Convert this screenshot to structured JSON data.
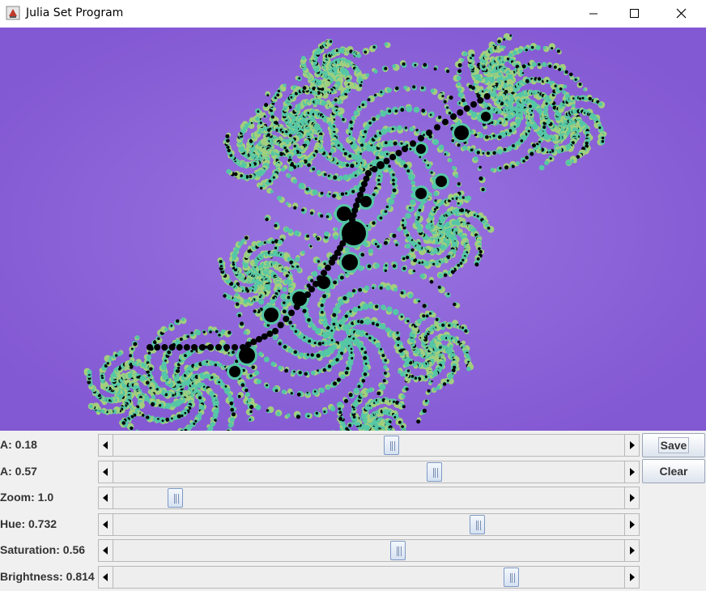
{
  "window": {
    "title": "Julia Set Program"
  },
  "colors": {
    "background": "#8358d3",
    "set": "#000000",
    "edge": "#55c7a6",
    "outer": "#a3cf7d"
  },
  "controls": [
    {
      "label": "A: 0.18",
      "fraction": 0.546
    },
    {
      "label": "A: 0.57",
      "fraction": 0.632
    },
    {
      "label": "Zoom: 1.0",
      "fraction": 0.11
    },
    {
      "label": "Hue: 0.732",
      "fraction": 0.719
    },
    {
      "label": "Saturation: 0.56",
      "fraction": 0.559
    },
    {
      "label": "Brightness: 0.814",
      "fraction": 0.788
    }
  ],
  "buttons": {
    "save": "Save",
    "clear": "Clear"
  }
}
